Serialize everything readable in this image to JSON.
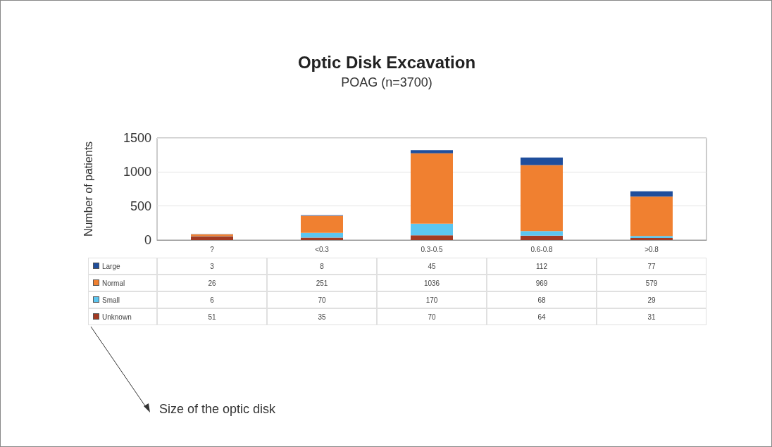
{
  "chart_data": {
    "type": "bar",
    "title": "Optic Disk Excavation",
    "subtitle": "POAG (n=3700)",
    "ylabel": "Number of patients",
    "categories": [
      "?",
      "<0.3",
      "0.3-0.5",
      "0.6-0.8",
      ">0.8"
    ],
    "stacked": true,
    "series": [
      {
        "name": "Unknown",
        "color": "#a33a22",
        "values": [
          51,
          35,
          70,
          64,
          31
        ]
      },
      {
        "name": "Small",
        "color": "#5cc6f0",
        "values": [
          6,
          70,
          170,
          68,
          29
        ]
      },
      {
        "name": "Normal",
        "color": "#f08030",
        "values": [
          26,
          251,
          1036,
          969,
          579
        ]
      },
      {
        "name": "Large",
        "color": "#1f4e9c",
        "values": [
          3,
          8,
          45,
          112,
          77
        ]
      }
    ],
    "ylim": [
      0,
      1500
    ],
    "yticks": [
      0,
      500,
      1000,
      1500
    ],
    "grid": "y",
    "legend": "bottom",
    "data_labels": true,
    "annotations": [
      "Size of the optic disk"
    ]
  }
}
